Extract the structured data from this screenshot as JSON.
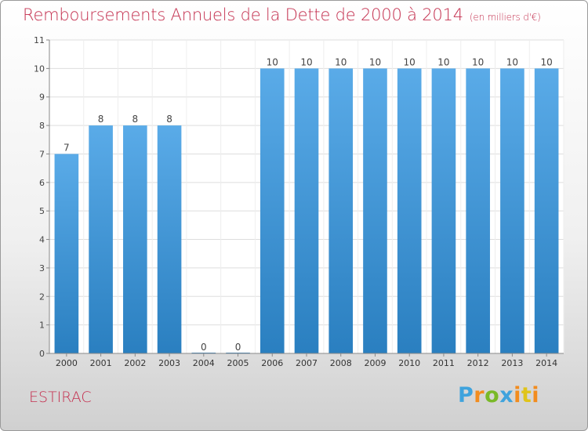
{
  "header": {
    "title": "Remboursements Annuels de la Dette de 2000 à 2014",
    "subtitle": "(en milliers d'€)"
  },
  "footer": {
    "place": "ESTIRAC",
    "logo": [
      "P",
      "r",
      "o",
      "x",
      "i",
      "t",
      "i"
    ]
  },
  "colors": {
    "title": "#c4304f",
    "bar_top": "#5aabe8",
    "bar_bottom": "#2a7fc0",
    "grid": "#dddddd"
  },
  "chart_data": {
    "type": "bar",
    "categories": [
      "2000",
      "2001",
      "2002",
      "2003",
      "2004",
      "2005",
      "2006",
      "2007",
      "2008",
      "2009",
      "2010",
      "2011",
      "2012",
      "2013",
      "2014"
    ],
    "values": [
      7,
      8,
      8,
      8,
      0,
      0,
      10,
      10,
      10,
      10,
      10,
      10,
      10,
      10,
      10
    ],
    "title": "Remboursements Annuels de la Dette de 2000 à 2014",
    "xlabel": "",
    "ylabel": "",
    "ylim": [
      0,
      11
    ],
    "yticks": [
      0,
      1,
      2,
      3,
      4,
      5,
      6,
      7,
      8,
      9,
      10,
      11
    ],
    "grid": true,
    "legend": "none"
  }
}
